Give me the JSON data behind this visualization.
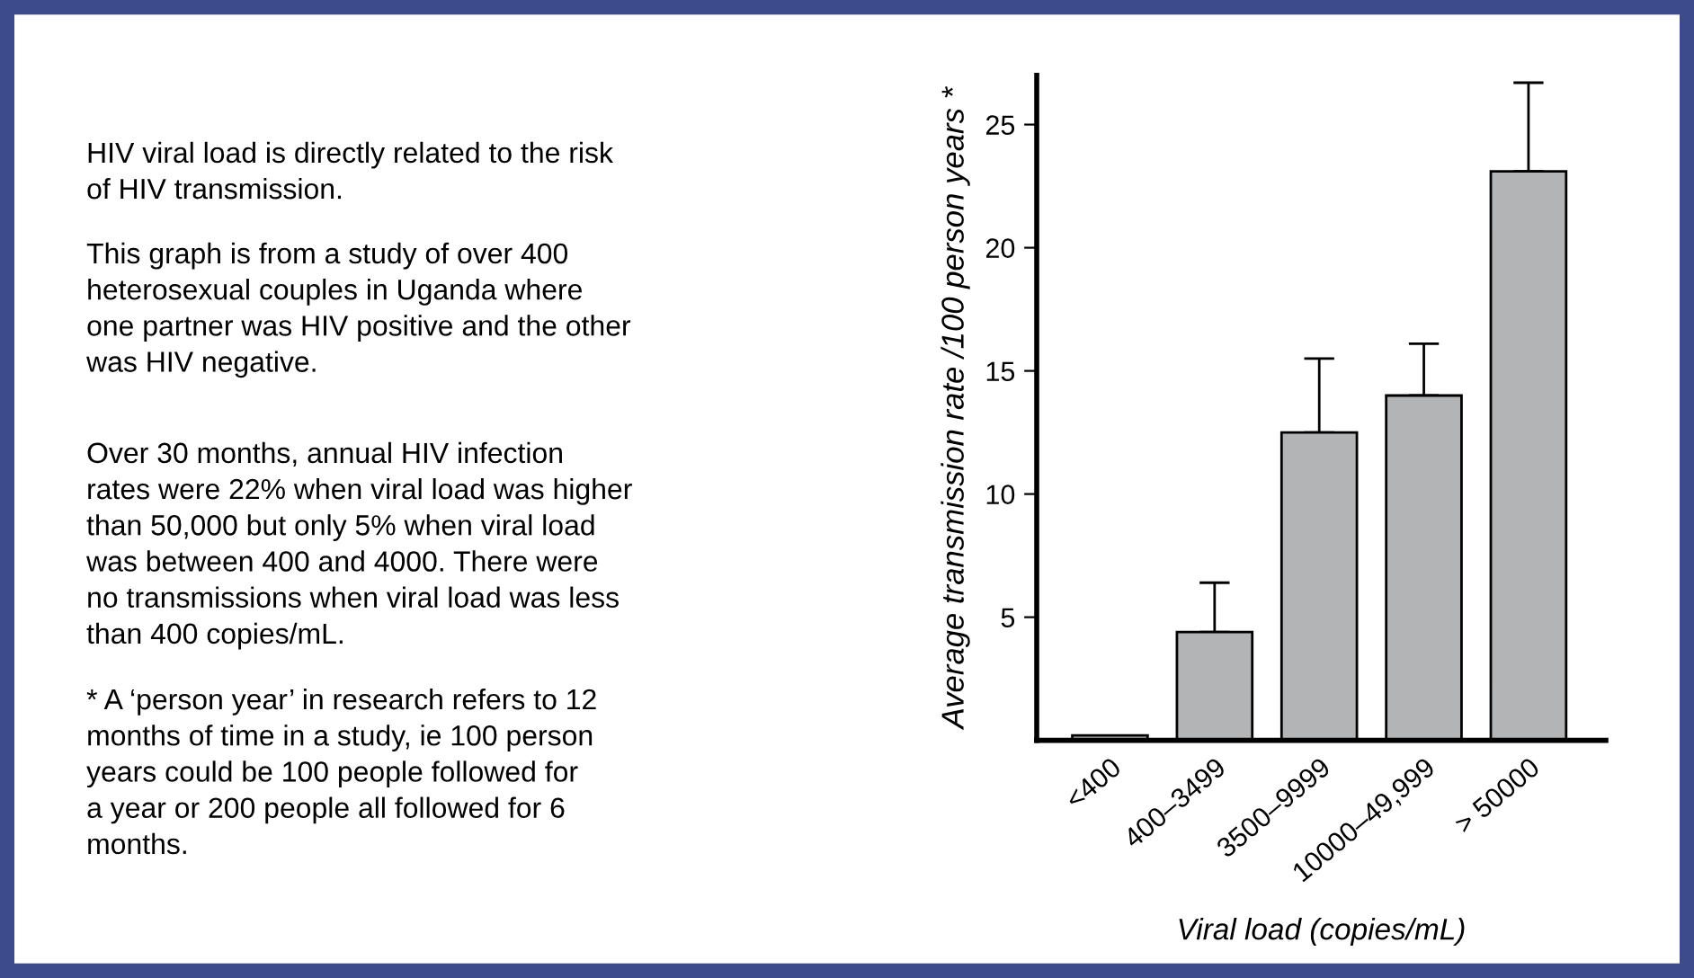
{
  "chart_data": {
    "type": "bar",
    "xlabel": "Viral load (copies/mL)",
    "ylabel": "Average transmission rate /100 person years *",
    "categories": [
      "<400",
      "400–3499",
      "3500–9999",
      "10000–49,999",
      "> 50000"
    ],
    "values": [
      0.2,
      4.4,
      12.5,
      14.0,
      23.1
    ],
    "errors": [
      null,
      [
        4.4,
        6.4
      ],
      [
        12.5,
        15.5
      ],
      [
        14.0,
        16.1
      ],
      [
        23.1,
        26.7
      ]
    ],
    "color": "#b3b4b6",
    "ylim": [
      0,
      27
    ],
    "yticks": [
      5,
      10,
      15,
      20,
      25
    ],
    "grid": false,
    "legend": false,
    "annotations": [
      "HIV viral load is directly related to the risk\nof HIV transmission.",
      "This graph is from a study of over 400\nheterosexual couples in Uganda where\none partner was HIV positive and the other\nwas HIV negative.",
      "Over 30 months, annual HIV infection\nrates were 22% when viral load was higher\nthan 50,000 but only 5% when viral load\nwas between 400 and 4000. There were\nno transmissions when viral load was less\nthan 400 copies/mL.",
      "* A ‘person year’ in research refers to 12\nmonths of time in a study, ie 100 person\nyears could be 100 people followed for\na year or 200 people all followed for 6\nmonths."
    ]
  }
}
